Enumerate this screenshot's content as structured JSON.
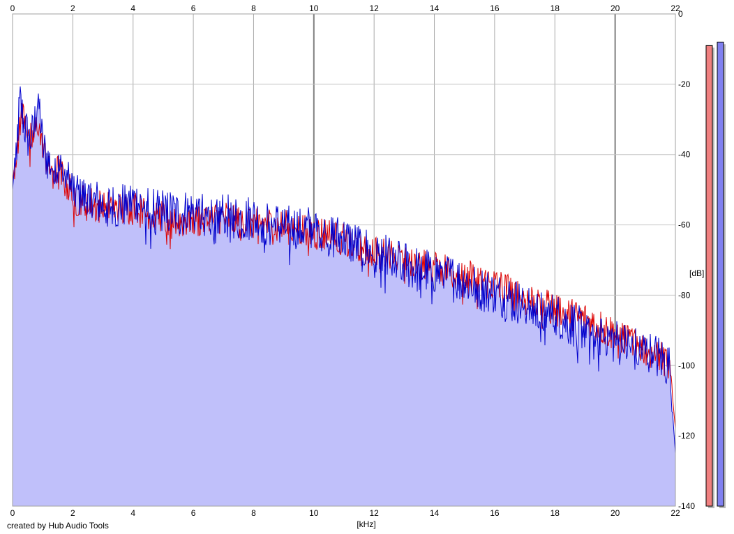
{
  "chart_data": {
    "type": "area",
    "title": "",
    "xlabel": "[kHz]",
    "ylabel": "[dB]",
    "xlim": [
      0,
      22
    ],
    "ylim": [
      -140,
      0
    ],
    "xticks": [
      0,
      2,
      4,
      6,
      8,
      10,
      12,
      14,
      16,
      18,
      20,
      22
    ],
    "yticks": [
      0,
      -20,
      -40,
      -60,
      -80,
      -100,
      -120,
      -140
    ],
    "grid": true,
    "series": [
      {
        "color": "#0000cc",
        "fill": "#c0c0fa",
        "x": [
          0,
          0.1,
          0.25,
          0.4,
          0.55,
          0.7,
          0.85,
          1.0,
          1.2,
          1.5,
          1.8,
          2.0,
          2.5,
          3.0,
          3.5,
          4.0,
          4.5,
          5.0,
          5.5,
          6.0,
          6.5,
          7.0,
          7.5,
          8.0,
          8.5,
          9.0,
          9.5,
          10.0,
          10.5,
          11.0,
          11.5,
          12.0,
          12.5,
          13.0,
          13.5,
          14.0,
          14.5,
          15.0,
          15.5,
          16.0,
          16.5,
          17.0,
          17.5,
          18.0,
          18.5,
          19.0,
          19.5,
          20.0,
          20.5,
          21.0,
          21.5,
          21.8,
          22.0
        ],
        "values": [
          -50,
          -40,
          -25,
          -32,
          -36,
          -34,
          -22,
          -38,
          -42,
          -44,
          -47,
          -50,
          -53,
          -54,
          -55,
          -53,
          -55,
          -56,
          -57,
          -56,
          -58,
          -57,
          -58,
          -58,
          -60,
          -60,
          -61,
          -61,
          -63,
          -64,
          -66,
          -68,
          -69,
          -71,
          -73,
          -73,
          -75,
          -76,
          -78,
          -80,
          -81,
          -83,
          -85,
          -86,
          -88,
          -89,
          -91,
          -93,
          -95,
          -96,
          -98,
          -100,
          -125
        ]
      },
      {
        "color": "#dd0000",
        "x": [
          0,
          0.1,
          0.25,
          0.4,
          0.55,
          0.7,
          0.85,
          1.0,
          1.2,
          1.5,
          1.8,
          2.0,
          2.5,
          3.0,
          3.5,
          4.0,
          4.5,
          5.0,
          5.5,
          6.0,
          6.5,
          7.0,
          7.5,
          8.0,
          8.5,
          9.0,
          9.5,
          10.0,
          10.5,
          11.0,
          11.5,
          12.0,
          12.5,
          13.0,
          13.5,
          14.0,
          14.5,
          15.0,
          15.5,
          16.0,
          16.5,
          17.0,
          17.5,
          18.0,
          18.5,
          19.0,
          19.5,
          20.0,
          20.5,
          21.0,
          21.5,
          21.8,
          22.0
        ],
        "values": [
          -48,
          -40,
          -30,
          -28,
          -35,
          -36,
          -30,
          -40,
          -42,
          -45,
          -48,
          -52,
          -54,
          -55,
          -56,
          -55,
          -57,
          -58,
          -59,
          -58,
          -59,
          -58,
          -59,
          -59,
          -60,
          -61,
          -61,
          -62,
          -63,
          -64,
          -66,
          -67,
          -68,
          -70,
          -71,
          -72,
          -73,
          -74,
          -76,
          -77,
          -79,
          -81,
          -82,
          -84,
          -86,
          -87,
          -89,
          -91,
          -93,
          -95,
          -97,
          -99,
          -118
        ]
      }
    ],
    "meters": [
      {
        "color": "#f08080",
        "top_db": -9
      },
      {
        "color": "#8080f0",
        "top_db": -8
      }
    ]
  },
  "footer": {
    "credit": "created by Hub Audio Tools"
  }
}
